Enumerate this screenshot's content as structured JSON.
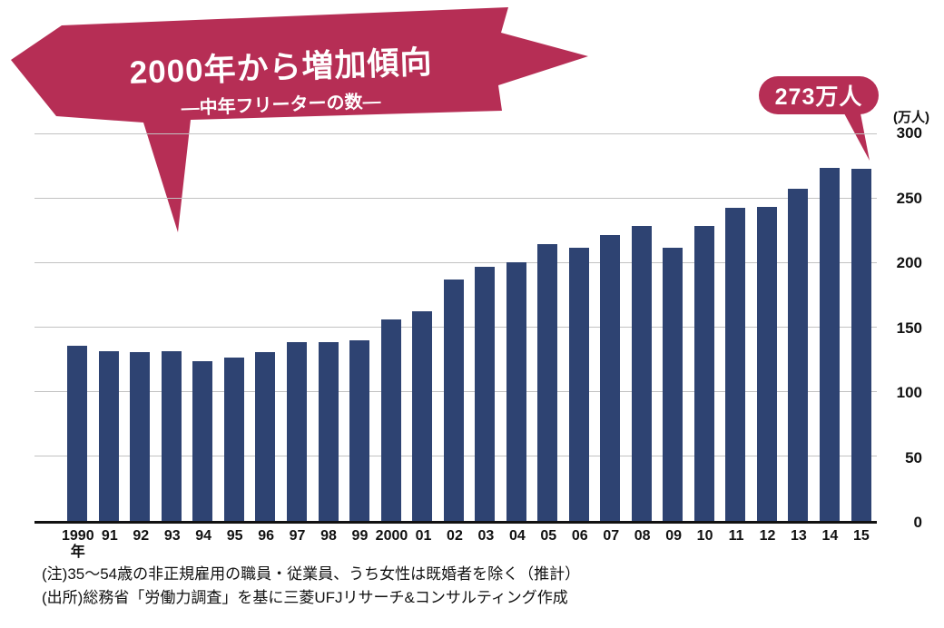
{
  "callout": {
    "title": "2000年から増加傾向",
    "subtitle": "―中年フリーターの数―"
  },
  "annotation_badge": {
    "label": "273万人"
  },
  "chart_data": {
    "type": "bar",
    "title": "中年フリーターの数",
    "unit_label": "(万人)",
    "categories": [
      "1990\n年",
      "91",
      "92",
      "93",
      "94",
      "95",
      "96",
      "97",
      "98",
      "99",
      "2000",
      "01",
      "02",
      "03",
      "04",
      "05",
      "06",
      "07",
      "08",
      "09",
      "10",
      "11",
      "12",
      "13",
      "14",
      "15"
    ],
    "values": [
      136,
      132,
      131,
      132,
      124,
      127,
      131,
      139,
      139,
      140,
      156,
      163,
      187,
      197,
      201,
      215,
      212,
      222,
      229,
      212,
      229,
      243,
      244,
      258,
      274,
      273
    ],
    "ylim": [
      0,
      300
    ],
    "yticks": [
      300,
      250,
      200,
      150,
      100,
      50,
      0
    ],
    "grid": true,
    "legend": "none",
    "highlight": {
      "category": "15",
      "value_label": "273万人"
    }
  },
  "notes": {
    "line1": "(注)35～54歳の非正規雇用の職員・従業員、うち女性は既婚者を除く（推計）",
    "line2": "(出所)総務省「労働力調査」を基に三菱UFJリサーチ&コンサルティング作成"
  },
  "colors": {
    "accent": "#b62e55",
    "bar": "#2e4372",
    "gridline": "#c2c2c2"
  }
}
